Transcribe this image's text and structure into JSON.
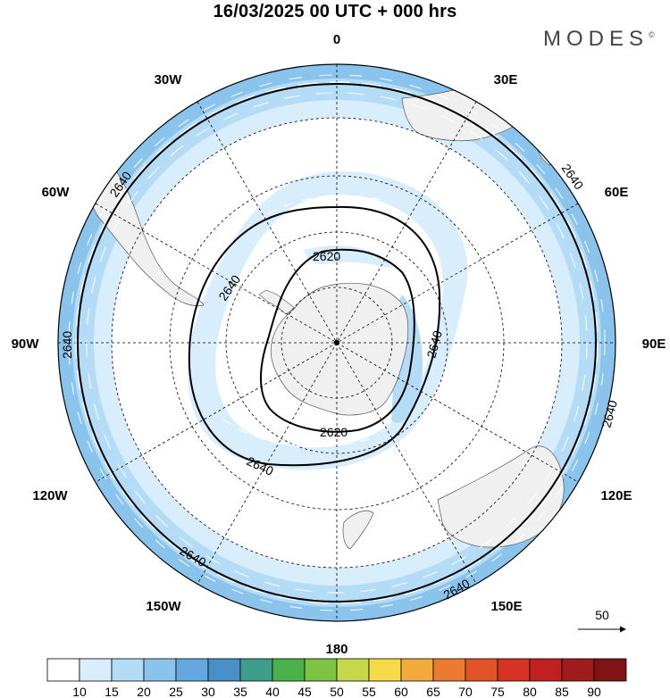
{
  "title": "16/03/2025  00 UTC  + 000 hrs",
  "brand": "MODES",
  "brand_mark": "©",
  "map": {
    "projection": "south-polar-stereographic",
    "longitude_labels": {
      "top": "0",
      "upper_right": "30E",
      "right_upper": "60E",
      "right": "90E",
      "right_lower": "120E",
      "lower_right": "150E",
      "bottom": "180",
      "lower_left": "150W",
      "left_lower": "120W",
      "left": "90W",
      "left_upper": "60W",
      "upper_left": "30W"
    },
    "contour_labels": [
      "2640",
      "2620",
      "2620",
      "2640",
      "2640",
      "2640",
      "2640",
      "2640",
      "2640",
      "2640",
      "2640",
      "2640"
    ],
    "wind_reference_vector": "50"
  },
  "colorbar": {
    "labels": [
      "10",
      "15",
      "20",
      "25",
      "30",
      "35",
      "40",
      "45",
      "50",
      "55",
      "60",
      "65",
      "70",
      "75",
      "80",
      "85",
      "90"
    ],
    "colors": [
      "#ffffff",
      "#d8eefc",
      "#b4dcf6",
      "#8ac4ec",
      "#64a8df",
      "#4a90c8",
      "#3f9e8a",
      "#4bb14a",
      "#7cc442",
      "#c6d84a",
      "#f6da4a",
      "#f2aa3c",
      "#ec7a30",
      "#e25428",
      "#d63226",
      "#c02020",
      "#a01c1c",
      "#801414"
    ]
  },
  "colors": {
    "low_wind": "#ffffff",
    "light_wind": "#d8eefc",
    "mid_wind": "#b4dcf6",
    "strong_wind": "#8ac4ec",
    "land": "#f0f0f0",
    "contour": "#000000"
  }
}
